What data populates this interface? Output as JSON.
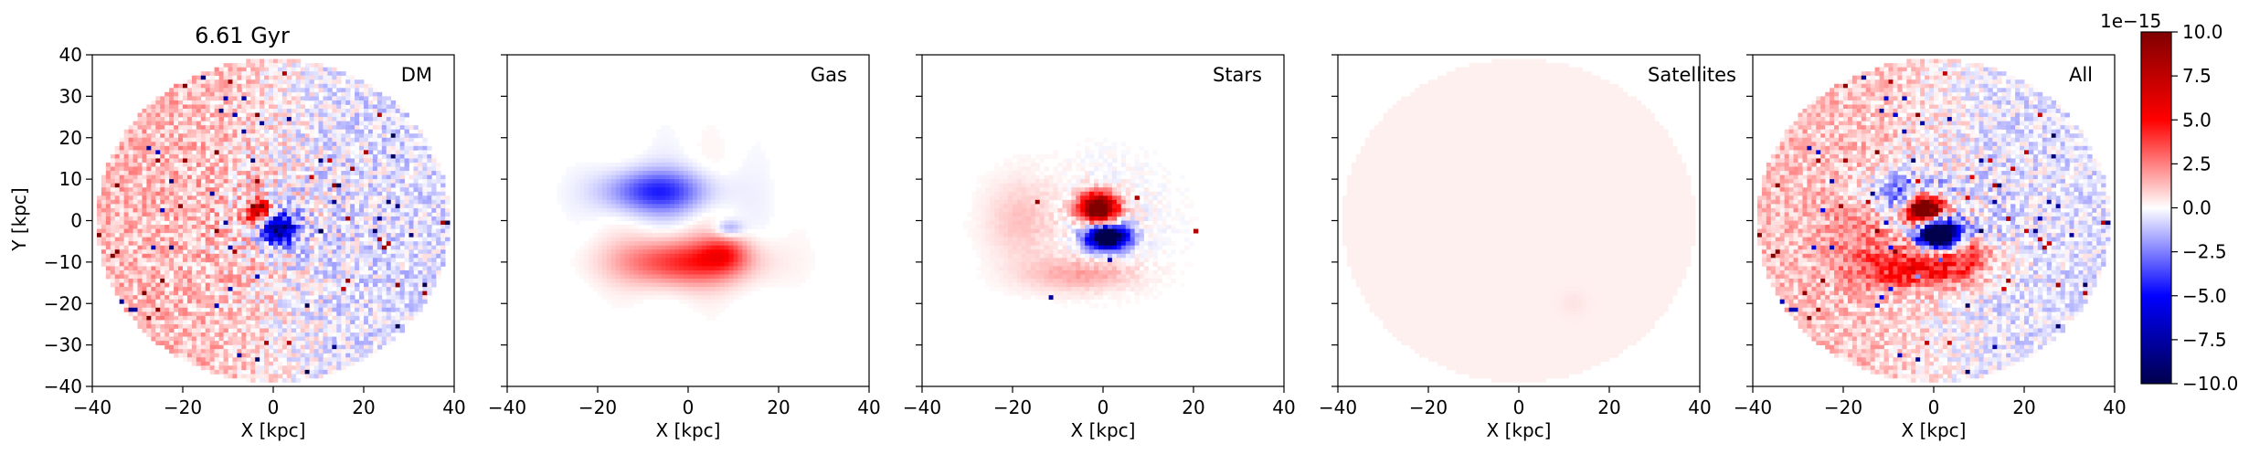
{
  "chart_data": {
    "type": "heatmap",
    "title": "6.61 Gyr",
    "ylabel": "Y [kpc]",
    "xlabel": "X [kpc]",
    "xlim": [
      -40,
      40
    ],
    "ylim": [
      -40,
      40
    ],
    "x_ticks": [
      "−40",
      "−20",
      "0",
      "20",
      "40"
    ],
    "y_ticks": [
      "40",
      "30",
      "20",
      "10",
      "0",
      "−10",
      "−20",
      "−30",
      "−40"
    ],
    "panels": [
      {
        "label": "DM",
        "pattern": "dm"
      },
      {
        "label": "Gas",
        "pattern": "gas"
      },
      {
        "label": "Stars",
        "pattern": "stars"
      },
      {
        "label": "Satellites",
        "pattern": "sat"
      },
      {
        "label": "All",
        "pattern": "all"
      }
    ],
    "colorbar": {
      "colormap": "seismic",
      "range": [
        -10.0,
        10.0
      ],
      "offset_text": "1e−15",
      "ticks": [
        "10.0",
        "7.5",
        "5.0",
        "2.5",
        "0.0",
        "−2.5",
        "−5.0",
        "−7.5",
        "−10.0"
      ]
    },
    "grid": false
  }
}
